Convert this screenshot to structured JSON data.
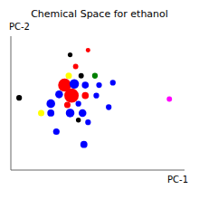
{
  "chart_data": {
    "type": "scatter",
    "title": "Chemical Space for ethanol",
    "x_label": "PC-1",
    "y_label": "PC-2",
    "xlim": [
      -4.8,
      7.8
    ],
    "ylim": [
      -6.0,
      5.5
    ],
    "tick_labels": false,
    "grid": false,
    "x": [
      -0.5,
      0.8,
      -0.1,
      -0.6,
      0.3,
      1.3,
      -0.9,
      -0.2,
      0.6,
      1.6,
      -1.3,
      -0.4,
      0.6,
      1.4,
      -1.9,
      -0.7,
      0.1,
      -4.2,
      -2.6,
      -1.9,
      -0.5,
      0.4,
      0.1,
      0.8,
      -1.5,
      0.5,
      6.7,
      2.6,
      2.3
    ],
    "values": [
      3.9,
      4.3,
      2.9,
      2.1,
      2.1,
      2.1,
      1.3,
      1.4,
      1.3,
      1.3,
      0.5,
      0.4,
      0.4,
      0.4,
      -0.3,
      -0.4,
      -0.3,
      0.2,
      -1.1,
      -1.1,
      -1.1,
      -1.1,
      -1.7,
      -1.9,
      -2.7,
      -3.8,
      0.1,
      1.5,
      -0.6
    ],
    "colors": [
      "black",
      "red",
      "red",
      "yellow",
      "black",
      "green",
      "red",
      "blue",
      "blue",
      "blue",
      "blue",
      "red",
      "red",
      "blue",
      "blue",
      "red",
      "blue",
      "black",
      "yellow",
      "blue",
      "blue",
      "blue",
      "black",
      "blue",
      "blue",
      "blue",
      "magenta",
      "blue",
      "blue"
    ],
    "sizes": [
      12,
      10,
      18,
      30,
      18,
      22,
      160,
      80,
      38,
      22,
      50,
      200,
      38,
      22,
      65,
      30,
      22,
      22,
      30,
      40,
      65,
      50,
      14,
      22,
      32,
      40,
      18,
      22,
      22
    ]
  }
}
